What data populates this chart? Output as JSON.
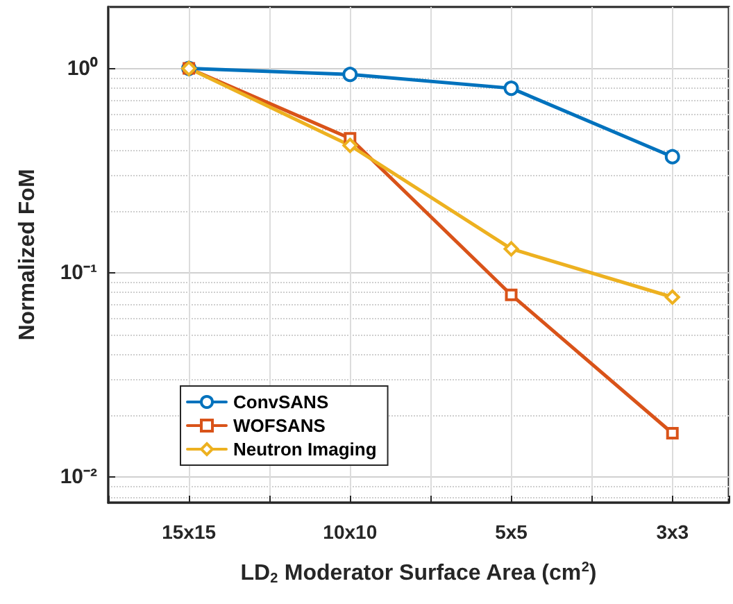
{
  "chart_data": {
    "type": "line",
    "xlabel": "LD$_{2}$ Moderator Surface Area (cm$^{2}$)",
    "ylabel": "Normalized FoM",
    "categories": [
      "15x15",
      "10x10",
      "5x5",
      "3x3"
    ],
    "series": [
      {
        "name": "ConvSANS",
        "color": "#0072bd",
        "marker": "circle",
        "values": [
          1,
          0.935,
          0.8,
          0.37
        ]
      },
      {
        "name": "WOFSANS",
        "color": "#d95319",
        "marker": "square",
        "values": [
          1,
          0.455,
          0.078,
          0.0164
        ]
      },
      {
        "name": "Neutron Imaging",
        "color": "#edb120",
        "marker": "diamond",
        "values": [
          1,
          0.42,
          0.131,
          0.076
        ]
      }
    ],
    "log": "y",
    "ylim": [
      0.0075,
      2
    ],
    "yticks": [
      {
        "value": 0.01,
        "label": "10⁻²"
      },
      {
        "value": 0.1,
        "label": "10⁻¹"
      },
      {
        "value": 1,
        "label": "10⁰"
      }
    ],
    "grid": true,
    "legend": "bottom left",
    "line_style": "solid"
  }
}
